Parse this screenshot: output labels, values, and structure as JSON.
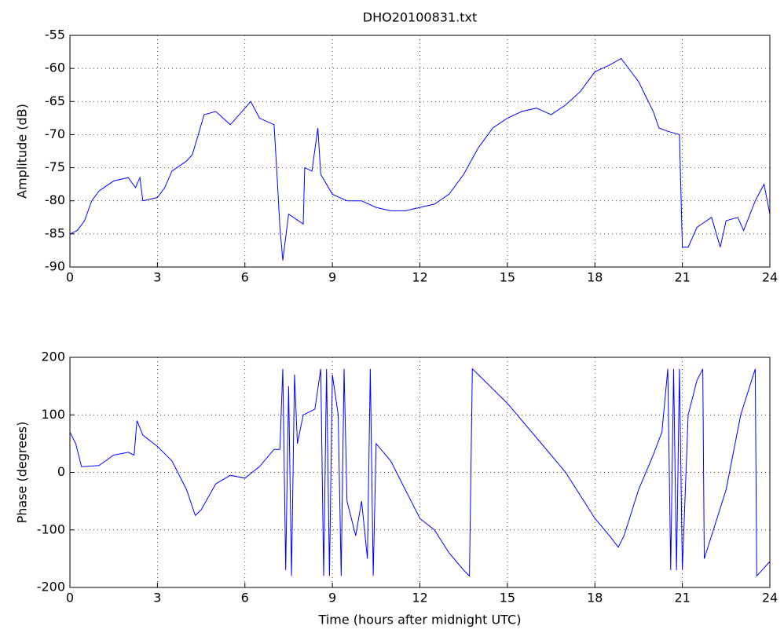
{
  "chart_data": [
    {
      "type": "line",
      "title": "DHO20100831.txt",
      "ylabel": "Amplitude (dB)",
      "color": "#0000ff",
      "grid": true,
      "xlim": [
        0,
        24
      ],
      "xticks": [
        0,
        3,
        6,
        9,
        12,
        15,
        18,
        21,
        24
      ],
      "ylim": [
        -90,
        -55
      ],
      "yticks": [
        -90,
        -85,
        -80,
        -75,
        -70,
        -65,
        -60,
        -55
      ],
      "x": [
        0,
        0.25,
        0.5,
        0.75,
        1,
        1.5,
        2,
        2.25,
        2.4,
        2.5,
        3,
        3.25,
        3.5,
        4,
        4.2,
        4.4,
        4.6,
        5,
        5.5,
        6,
        6.2,
        6.5,
        7,
        7.1,
        7.2,
        7.3,
        7.5,
        8,
        8.05,
        8.3,
        8.5,
        8.6,
        9,
        9.5,
        10,
        10.5,
        11,
        11.5,
        12,
        12.5,
        13,
        13.5,
        14,
        14.5,
        15,
        15.5,
        16,
        16.5,
        17,
        17.5,
        18,
        18.5,
        18.9,
        19.5,
        20,
        20.2,
        20.5,
        20.9,
        21,
        21.2,
        21.5,
        22,
        22.3,
        22.5,
        22.9,
        23.1,
        23.5,
        23.8,
        24
      ],
      "values": [
        -85,
        -84.5,
        -83,
        -80,
        -78.5,
        -77,
        -76.5,
        -78,
        -76.5,
        -80,
        -79.5,
        -78,
        -75.5,
        -74,
        -73,
        -70,
        -67,
        -66.5,
        -68.5,
        -66,
        -65,
        -67.5,
        -68.5,
        -76,
        -84,
        -89,
        -82,
        -83.5,
        -75,
        -75.5,
        -69,
        -76,
        -79,
        -80,
        -80,
        -81,
        -81.5,
        -81.5,
        -81,
        -80.5,
        -79,
        -76,
        -72,
        -69,
        -67.5,
        -66.5,
        -66,
        -67,
        -65.5,
        -63.5,
        -60.5,
        -59.5,
        -58.5,
        -62,
        -66.5,
        -69,
        -69.5,
        -70,
        -87,
        -87,
        -84,
        -82.5,
        -87,
        -83,
        -82.5,
        -84.5,
        -80,
        -77.5,
        -82
      ]
    },
    {
      "type": "line",
      "xlabel": "Time (hours after midnight UTC)",
      "ylabel": "Phase (degrees)",
      "color": "#0000ff",
      "grid": true,
      "xlim": [
        0,
        24
      ],
      "xticks": [
        0,
        3,
        6,
        9,
        12,
        15,
        18,
        21,
        24
      ],
      "ylim": [
        -200,
        200
      ],
      "yticks": [
        -200,
        -100,
        0,
        100,
        200
      ],
      "x": [
        0,
        0.2,
        0.4,
        1,
        1.5,
        2,
        2.2,
        2.3,
        2.5,
        3,
        3.5,
        4,
        4.3,
        4.5,
        5,
        5.5,
        6,
        6.5,
        7,
        7.2,
        7.3,
        7.4,
        7.5,
        7.6,
        7.7,
        7.8,
        8,
        8.4,
        8.6,
        8.7,
        8.8,
        8.9,
        9,
        9.2,
        9.3,
        9.4,
        9.5,
        9.8,
        10,
        10.2,
        10.3,
        10.4,
        10.5,
        11,
        11.5,
        12,
        12.5,
        13,
        13.5,
        13.7,
        13.8,
        14,
        15,
        16,
        17,
        18,
        18.5,
        18.8,
        19,
        19.5,
        20,
        20.3,
        20.5,
        20.6,
        20.7,
        20.8,
        20.9,
        21,
        21.2,
        21.5,
        21.7,
        21.75,
        22,
        22.5,
        23,
        23.5,
        23.55,
        24
      ],
      "values": [
        70,
        50,
        10,
        12,
        30,
        35,
        30,
        90,
        65,
        45,
        20,
        -30,
        -75,
        -65,
        -20,
        -5,
        -10,
        10,
        40,
        40,
        180,
        -170,
        150,
        -180,
        170,
        50,
        100,
        110,
        180,
        -180,
        180,
        -180,
        170,
        100,
        -180,
        180,
        -50,
        -110,
        -50,
        -150,
        180,
        -180,
        50,
        20,
        -30,
        -80,
        -100,
        -140,
        -170,
        -180,
        180,
        170,
        120,
        60,
        0,
        -80,
        -110,
        -130,
        -110,
        -30,
        30,
        70,
        180,
        -170,
        180,
        -170,
        180,
        -170,
        100,
        160,
        180,
        -150,
        -110,
        -30,
        100,
        180,
        -180,
        -155
      ]
    }
  ]
}
